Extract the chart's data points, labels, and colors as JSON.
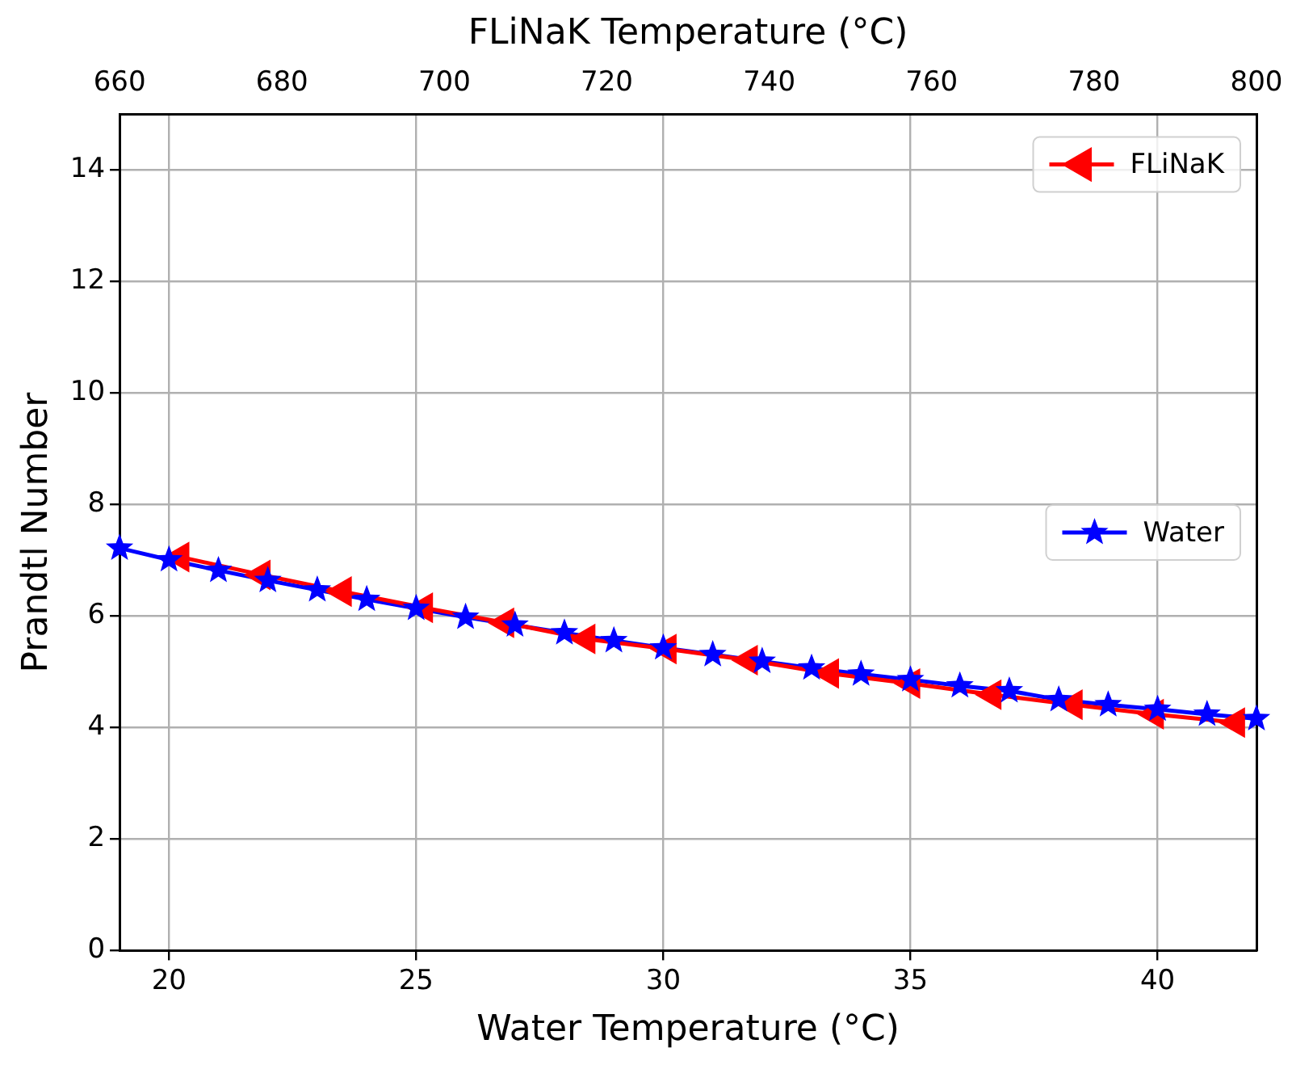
{
  "chart_data": {
    "type": "line",
    "xlabel": "Water Temperature (°C)",
    "x2label": "FLiNaK Temperature (°C)",
    "ylabel": "Prandtl Number",
    "xlim": [
      19,
      42
    ],
    "xticks": [
      20,
      25,
      30,
      35,
      40
    ],
    "x2lim": [
      660,
      800
    ],
    "x2ticks": [
      660,
      680,
      700,
      720,
      740,
      760,
      780,
      800
    ],
    "ylim": [
      0,
      15
    ],
    "yticks": [
      0,
      2,
      4,
      6,
      8,
      10,
      12,
      14
    ],
    "grid": true,
    "legend": "right",
    "series": [
      {
        "name": "FLiNaK",
        "color": "#ff0000",
        "axis": "x2",
        "marker": "triangle",
        "x": [
          667.5,
          677.5,
          687.5,
          697.5,
          707.5,
          717.5,
          727.5,
          737.5,
          747.5,
          757.5,
          767.5,
          777.5,
          787.5,
          797.5
        ],
        "values": [
          7.06,
          6.74,
          6.44,
          6.15,
          5.88,
          5.59,
          5.41,
          5.21,
          4.97,
          4.79,
          4.59,
          4.41,
          4.24,
          4.09
        ]
      },
      {
        "name": "Water",
        "color": "#0000ff",
        "marker": "star",
        "x": [
          19,
          20,
          21,
          22,
          23,
          24,
          25,
          26,
          27,
          28,
          29,
          30,
          31,
          32,
          33,
          34,
          35,
          36,
          37,
          38,
          39,
          40,
          41,
          42
        ],
        "values": [
          7.22,
          7.01,
          6.82,
          6.64,
          6.47,
          6.3,
          6.14,
          5.98,
          5.84,
          5.7,
          5.56,
          5.43,
          5.31,
          5.19,
          5.07,
          4.96,
          4.86,
          4.75,
          4.66,
          4.5,
          4.41,
          4.33,
          4.24,
          4.16
        ]
      }
    ]
  }
}
